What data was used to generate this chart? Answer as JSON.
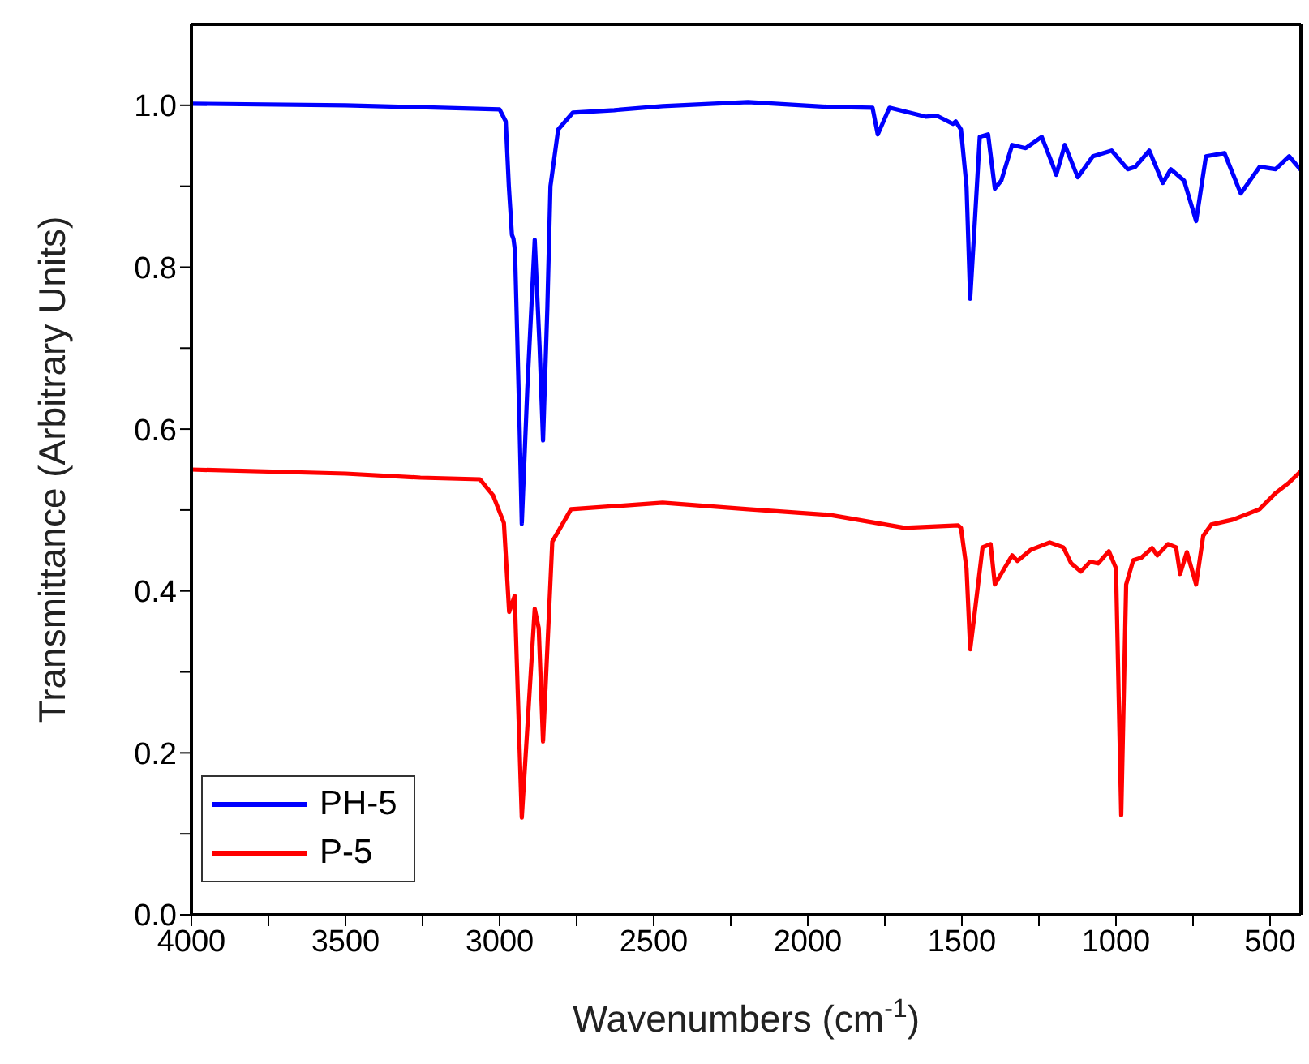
{
  "chart_data": {
    "type": "line",
    "xlabel": "Wavenumbers (cm$^{-1}$)",
    "ylabel": "Transmittance (Arbitrary Units)",
    "xlim": [
      4000,
      400
    ],
    "ylim": [
      0,
      1.1
    ],
    "xticks": [
      4000,
      {
        "value": 3750,
        "label": null
      },
      3500,
      {
        "value": 3250,
        "label": null
      },
      3000,
      {
        "value": 2750,
        "label": null
      },
      2500,
      {
        "value": 2250,
        "label": null
      },
      2000,
      {
        "value": 1750,
        "label": null
      },
      1500,
      {
        "value": 1250,
        "label": null
      },
      1000,
      {
        "value": 750,
        "label": null
      },
      500
    ],
    "yticks": [
      "0.0",
      {
        "value": 0.1,
        "label": null
      },
      0.2,
      {
        "value": 0.3,
        "label": null
      },
      0.4,
      {
        "value": 0.5,
        "label": null
      },
      0.6,
      {
        "value": 0.7,
        "label": null
      },
      0.8,
      {
        "value": 0.9,
        "label": null
      },
      "1.0"
    ],
    "legend": "bottom left",
    "marker": "none",
    "line_style": "solid",
    "series": [
      {
        "name": "PH-5",
        "color": "#0000ff",
        "x": [
          4000,
          3500,
          3000,
          2980,
          2970,
          2960,
          2955,
          2950,
          2935,
          2928,
          2910,
          2886,
          2870,
          2859,
          2845,
          2835,
          2810,
          2762,
          2628,
          2471,
          2194,
          1930,
          1790,
          1773,
          1735,
          1618,
          1581,
          1529,
          1520,
          1503,
          1485,
          1473,
          1459,
          1442,
          1415,
          1393,
          1372,
          1337,
          1293,
          1241,
          1206,
          1194,
          1166,
          1124,
          1075,
          1014,
          962,
          937,
          892,
          848,
          822,
          779,
          740,
          708,
          648,
          595,
          534,
          482,
          438,
          400
        ],
        "values": [
          1.002,
          1.0,
          0.995,
          0.98,
          0.9,
          0.84,
          0.835,
          0.82,
          0.6,
          0.483,
          0.65,
          0.834,
          0.7,
          0.586,
          0.75,
          0.9,
          0.97,
          0.991,
          0.994,
          0.999,
          1.004,
          0.998,
          0.997,
          0.964,
          0.997,
          0.986,
          0.987,
          0.977,
          0.98,
          0.97,
          0.9,
          0.761,
          0.85,
          0.961,
          0.964,
          0.897,
          0.907,
          0.951,
          0.947,
          0.961,
          0.927,
          0.914,
          0.951,
          0.911,
          0.937,
          0.944,
          0.921,
          0.924,
          0.944,
          0.904,
          0.921,
          0.907,
          0.857,
          0.937,
          0.941,
          0.891,
          0.924,
          0.921,
          0.937,
          0.92
        ]
      },
      {
        "name": "P-5",
        "color": "#ff0000",
        "x": [
          4000,
          3500,
          3257,
          3064,
          3021,
          2986,
          2969,
          2951,
          2928,
          2886,
          2873,
          2859,
          2829,
          2768,
          2471,
          2194,
          1930,
          1686,
          1512,
          1503,
          1485,
          1473,
          1459,
          1433,
          1407,
          1393,
          1337,
          1320,
          1276,
          1215,
          1171,
          1145,
          1114,
          1084,
          1058,
          1023,
          1000,
          983,
          967,
          944,
          918,
          883,
          866,
          831,
          805,
          792,
          770,
          740,
          717,
          691,
          622,
          534,
          482,
          438,
          400
        ],
        "values": [
          0.55,
          0.545,
          0.54,
          0.538,
          0.518,
          0.484,
          0.374,
          0.394,
          0.12,
          0.378,
          0.354,
          0.214,
          0.461,
          0.501,
          0.509,
          0.501,
          0.494,
          0.478,
          0.481,
          0.478,
          0.428,
          0.328,
          0.371,
          0.454,
          0.458,
          0.408,
          0.444,
          0.437,
          0.451,
          0.46,
          0.454,
          0.434,
          0.424,
          0.436,
          0.434,
          0.449,
          0.428,
          0.123,
          0.408,
          0.438,
          0.441,
          0.453,
          0.444,
          0.458,
          0.454,
          0.421,
          0.448,
          0.408,
          0.468,
          0.482,
          0.488,
          0.501,
          0.521,
          0.534,
          0.548
        ]
      }
    ]
  }
}
